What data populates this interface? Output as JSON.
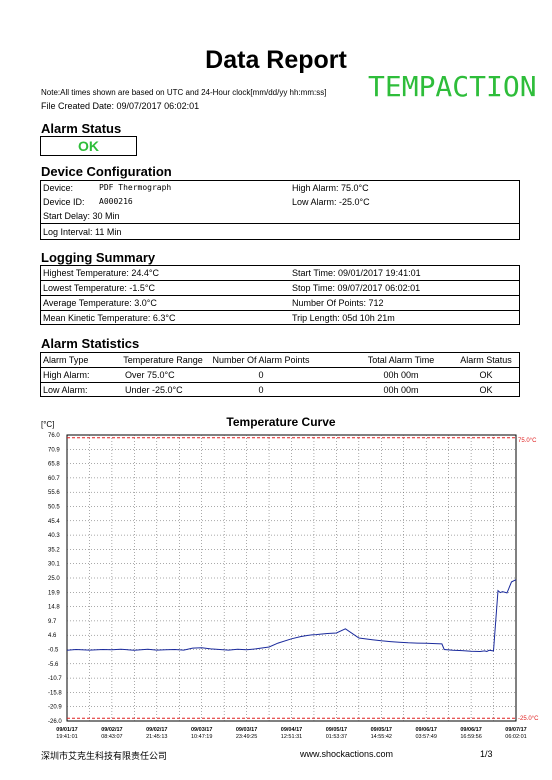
{
  "header": {
    "title": "Data Report",
    "brand": "TEMPACTION",
    "note": "Note:All times shown are based on UTC and 24-Hour clock[mm/dd/yy  hh:mm:ss]",
    "created": "File Created Date: 09/07/2017  06:02:01"
  },
  "alarm_status": {
    "heading": "Alarm Status",
    "value": "OK"
  },
  "device": {
    "heading": "Device Configuration",
    "device_label": "Device:",
    "device_value": "PDF Thermograph",
    "id_label": "Device ID:",
    "id_value": "A000216",
    "delay": "Start Delay:  30 Min",
    "interval": "Log Interval:  11 Min",
    "high_alarm": "High Alarm:  75.0°C",
    "low_alarm": "Low Alarm:   -25.0°C"
  },
  "logging": {
    "heading": "Logging Summary",
    "highest": "Highest Temperature:  24.4°C",
    "lowest": "Lowest Temperature:   -1.5°C",
    "average": "Average Temperature:  3.0°C",
    "mkt": "Mean Kinetic Temperature:  6.3°C",
    "start": "Start Time:  09/01/2017  19:41:01",
    "stop": "Stop Time:  09/07/2017  06:02:01",
    "points": "Number Of Points: 712",
    "length": "Trip Length:  05d 10h 21m"
  },
  "alarm_stats": {
    "heading": "Alarm Statistics",
    "headers": [
      "Alarm Type",
      "Temperature Range",
      "Number Of Alarm Points",
      "Total Alarm Time",
      "Alarm Status"
    ],
    "rows": [
      [
        "High Alarm:",
        "Over  75.0°C",
        "0",
        "00h 00m",
        "OK"
      ],
      [
        "Low Alarm:",
        "Under  -25.0°C",
        "0",
        "00h 00m",
        "OK"
      ]
    ]
  },
  "chart_data": {
    "type": "line",
    "title": "Temperature Curve",
    "ylabel": "[°C]",
    "ylim": [
      -26.0,
      76.0
    ],
    "y_ticks": [
      "76.0",
      "70.9",
      "65.8",
      "60.7",
      "55.6",
      "50.5",
      "45.4",
      "40.3",
      "35.2",
      "30.1",
      "25.0",
      "19.9",
      "14.8",
      "9.7",
      "4.6",
      "-0.5",
      "-5.6",
      "-10.7",
      "-15.8",
      "-20.9",
      "-26.0"
    ],
    "x_ticks": [
      [
        "09/01/17",
        "19:41:01"
      ],
      [
        "09/02/17",
        "08:43:07"
      ],
      [
        "09/02/17",
        "21:45:13"
      ],
      [
        "09/03/17",
        "10:47:19"
      ],
      [
        "09/03/17",
        "23:49:25"
      ],
      [
        "09/04/17",
        "12:51:31"
      ],
      [
        "09/05/17",
        "01:53:37"
      ],
      [
        "09/05/17",
        "14:55:42"
      ],
      [
        "09/06/17",
        "03:57:49"
      ],
      [
        "09/06/17",
        "16:59:56"
      ],
      [
        "09/07/17",
        "06:02:01"
      ]
    ],
    "high_alarm_label": "75.0°C",
    "low_alarm_label": "-25.0°C",
    "high_alarm": 75.0,
    "low_alarm": -25.0,
    "grid": true,
    "series": [
      {
        "x": [
          0,
          0.02,
          0.05,
          0.08,
          0.1,
          0.12,
          0.15,
          0.18,
          0.2,
          0.22,
          0.24,
          0.26,
          0.28,
          0.3,
          0.32,
          0.34,
          0.36,
          0.38,
          0.4,
          0.42,
          0.45,
          0.47,
          0.5,
          0.52,
          0.535,
          0.545,
          0.555,
          0.565,
          0.58,
          0.6,
          0.62,
          0.65,
          0.68,
          0.7,
          0.72,
          0.74,
          0.76,
          0.78,
          0.8,
          0.82,
          0.835,
          0.84,
          0.86,
          0.88,
          0.9,
          0.92,
          0.93,
          0.935,
          0.94,
          0.95,
          0.96,
          0.965,
          0.97,
          0.98,
          0.99,
          1.0
        ],
        "y": [
          -0.8,
          -0.5,
          -0.7,
          -0.5,
          -0.6,
          -0.4,
          -0.8,
          -0.4,
          -0.7,
          -0.6,
          -0.5,
          -0.7,
          0.0,
          0.1,
          -0.3,
          -0.5,
          -0.7,
          -0.4,
          -0.6,
          -0.3,
          0.4,
          1.8,
          3.3,
          4.1,
          4.5,
          4.7,
          4.8,
          5.0,
          5.2,
          5.4,
          6.9,
          3.6,
          3.0,
          2.6,
          2.3,
          2.1,
          1.9,
          1.8,
          1.7,
          1.6,
          1.5,
          -0.5,
          -0.8,
          -0.9,
          -1.1,
          -1.2,
          -1.0,
          -1.2,
          -0.8,
          -1.0,
          20.5,
          19.8,
          20.1,
          19.7,
          23.6,
          24.4
        ]
      }
    ]
  },
  "footer": {
    "company": "深圳市艾克生科技有限责任公司",
    "website": "www.shockactions.com",
    "page": "1/3"
  }
}
